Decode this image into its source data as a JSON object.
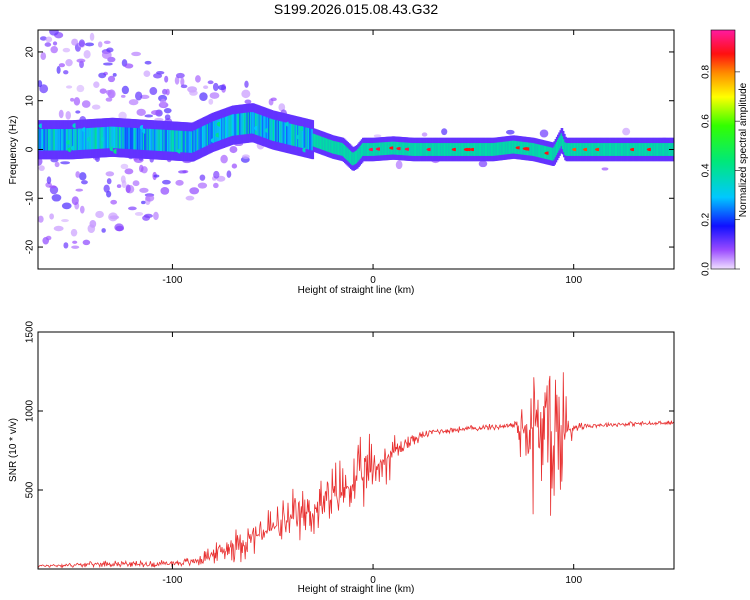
{
  "title": "S199.2026.015.08.43.G32",
  "chart_data": [
    {
      "type": "heatmap",
      "name": "spectrogram",
      "xlabel": "Height of straight line (km)",
      "ylabel": "Frequency (Hz)",
      "xlim": [
        -167,
        150
      ],
      "ylim": [
        -24.5,
        24.5
      ],
      "xticks": [
        -100,
        0,
        100
      ],
      "yticks": [
        -20,
        -10,
        0,
        10,
        20
      ],
      "colorbar": {
        "label": "Normalized spectral amplitude",
        "range": [
          0,
          0.97
        ],
        "ticks": [
          0,
          0.2,
          0.4,
          0.6,
          0.8
        ],
        "tick_labels": [
          "0.0",
          "0.2",
          "0.4",
          "0.6",
          "0.8"
        ],
        "colormap": "rainbow"
      },
      "ridge": {
        "x": [
          -167,
          -150,
          -130,
          -110,
          -90,
          -80,
          -70,
          -60,
          -50,
          -40,
          -30,
          -20,
          -15,
          -10,
          -8,
          -5,
          0,
          10,
          20,
          40,
          60,
          70,
          80,
          90,
          94,
          96,
          100,
          120,
          150
        ],
        "y": [
          2,
          2,
          2.5,
          2,
          1.5,
          3.5,
          5,
          5.5,
          4,
          3,
          2,
          0.5,
          0,
          -2,
          -1.5,
          0,
          0,
          0.3,
          0,
          0,
          0,
          0.5,
          0,
          -1,
          2,
          0,
          0,
          0,
          0
        ],
        "peak_amplitude": [
          0.3,
          0.35,
          0.3,
          0.3,
          0.3,
          0.35,
          0.4,
          0.4,
          0.4,
          0.35,
          0.35,
          0.4,
          0.9,
          0.5,
          0.9,
          0.9,
          0.95,
          0.9,
          0.95,
          0.9,
          0.9,
          0.9,
          0.9,
          0.9,
          0.5,
          0.8,
          0.85,
          0.9,
          0.9
        ]
      }
    },
    {
      "type": "line",
      "name": "snr",
      "xlabel": "Height of straight line (km)",
      "ylabel": "SNR (10 * v/v)",
      "xlim": [
        -167,
        150
      ],
      "ylim": [
        0,
        1500
      ],
      "xticks": [
        -100,
        0,
        100
      ],
      "yticks": [
        500,
        1000,
        1500
      ],
      "color": "#e83030",
      "x": [
        -167,
        -150,
        -130,
        -110,
        -90,
        -80,
        -70,
        -60,
        -50,
        -40,
        -30,
        -20,
        -10,
        0,
        10,
        20,
        30,
        40,
        50,
        60,
        70,
        80,
        90,
        95,
        100,
        110,
        120,
        130,
        140,
        150
      ],
      "y": [
        20,
        25,
        35,
        30,
        45,
        90,
        150,
        200,
        260,
        310,
        370,
        450,
        540,
        630,
        740,
        820,
        870,
        880,
        890,
        900,
        910,
        880,
        870,
        860,
        900,
        910,
        915,
        920,
        920,
        925
      ],
      "spread": [
        10,
        15,
        20,
        20,
        30,
        60,
        100,
        130,
        160,
        180,
        200,
        220,
        230,
        220,
        120,
        40,
        20,
        20,
        20,
        20,
        25,
        500,
        650,
        650,
        30,
        15,
        15,
        15,
        15,
        15
      ]
    }
  ]
}
